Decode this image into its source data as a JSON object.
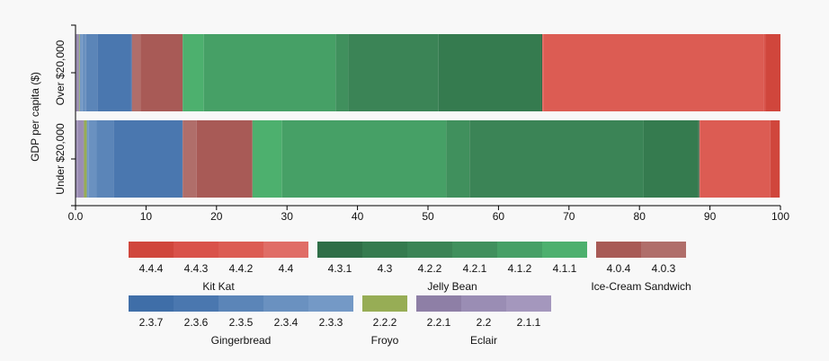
{
  "chart_data": {
    "type": "bar",
    "orientation": "horizontal",
    "stacked": true,
    "y_axis_label": "GDP per capita ($)",
    "categories": [
      "Over $20,000",
      "Under $20,000"
    ],
    "xlim": [
      0,
      100
    ],
    "xticks": [
      {
        "value": 0,
        "label": "0.0"
      },
      {
        "value": 10,
        "label": "10"
      },
      {
        "value": 20,
        "label": "20"
      },
      {
        "value": 30,
        "label": "30"
      },
      {
        "value": 40,
        "label": "40"
      },
      {
        "value": 50,
        "label": "50"
      },
      {
        "value": 60,
        "label": "60"
      },
      {
        "value": 70,
        "label": "70"
      },
      {
        "value": 80,
        "label": "80"
      },
      {
        "value": 90,
        "label": "90"
      },
      {
        "value": 100,
        "label": "100"
      }
    ],
    "series": [
      {
        "name": "2.1.1",
        "group": "Eclair",
        "color": "#a497bd",
        "values": [
          0.1,
          0.3
        ]
      },
      {
        "name": "2.2",
        "group": "Eclair",
        "color": "#9a8db4",
        "values": [
          0.3,
          0.8
        ]
      },
      {
        "name": "2.2.1",
        "group": "Eclair",
        "color": "#8e7fa6",
        "values": [
          0.1,
          0.1
        ]
      },
      {
        "name": "2.2.2",
        "group": "Froyo",
        "color": "#97ad55",
        "values": [
          0.1,
          0.4
        ]
      },
      {
        "name": "2.3.3",
        "group": "Gingerbread",
        "color": "#7499c6",
        "values": [
          0.4,
          0.3
        ]
      },
      {
        "name": "2.3.4",
        "group": "Gingerbread",
        "color": "#6a91c0",
        "values": [
          0.5,
          1.1
        ]
      },
      {
        "name": "2.3.5",
        "group": "Gingerbread",
        "color": "#5b85b8",
        "values": [
          1.6,
          2.4
        ]
      },
      {
        "name": "2.3.6",
        "group": "Gingerbread",
        "color": "#4a77af",
        "values": [
          4.8,
          9.7
        ]
      },
      {
        "name": "2.3.7",
        "group": "Gingerbread",
        "color": "#3f6ea8",
        "values": [
          0.1,
          0.1
        ]
      },
      {
        "name": "4.0.3",
        "group": "Ice-Cream Sandwich",
        "color": "#b06e6a",
        "values": [
          1.2,
          2.0
        ]
      },
      {
        "name": "4.0.4",
        "group": "Ice-Cream Sandwich",
        "color": "#a85a56",
        "values": [
          6.0,
          7.9
        ]
      },
      {
        "name": "4.1.1",
        "group": "Jelly Bean",
        "color": "#4db06e",
        "values": [
          3.0,
          4.2
        ]
      },
      {
        "name": "4.1.2",
        "group": "Jelly Bean",
        "color": "#46a066",
        "values": [
          18.7,
          23.3
        ]
      },
      {
        "name": "4.2.1",
        "group": "Jelly Bean",
        "color": "#40905d",
        "values": [
          1.8,
          3.3
        ]
      },
      {
        "name": "4.2.2",
        "group": "Jelly Bean",
        "color": "#3b8456",
        "values": [
          12.8,
          24.7
        ]
      },
      {
        "name": "4.3",
        "group": "Jelly Bean",
        "color": "#357b4f",
        "values": [
          14.5,
          7.7
        ]
      },
      {
        "name": "4.3.1",
        "group": "Jelly Bean",
        "color": "#2f6e47",
        "values": [
          0.2,
          0.2
        ]
      },
      {
        "name": "4.4",
        "group": "Kit Kat",
        "color": "#e06d66",
        "values": [
          0.2,
          0.1
        ]
      },
      {
        "name": "4.4.2",
        "group": "Kit Kat",
        "color": "#dc5c53",
        "values": [
          31.2,
          9.9
        ]
      },
      {
        "name": "4.4.3",
        "group": "Kit Kat",
        "color": "#d9524a",
        "values": [
          0.3,
          0.1
        ]
      },
      {
        "name": "4.4.4",
        "group": "Kit Kat",
        "color": "#d0463c",
        "values": [
          2.1,
          1.3
        ]
      }
    ]
  }
}
